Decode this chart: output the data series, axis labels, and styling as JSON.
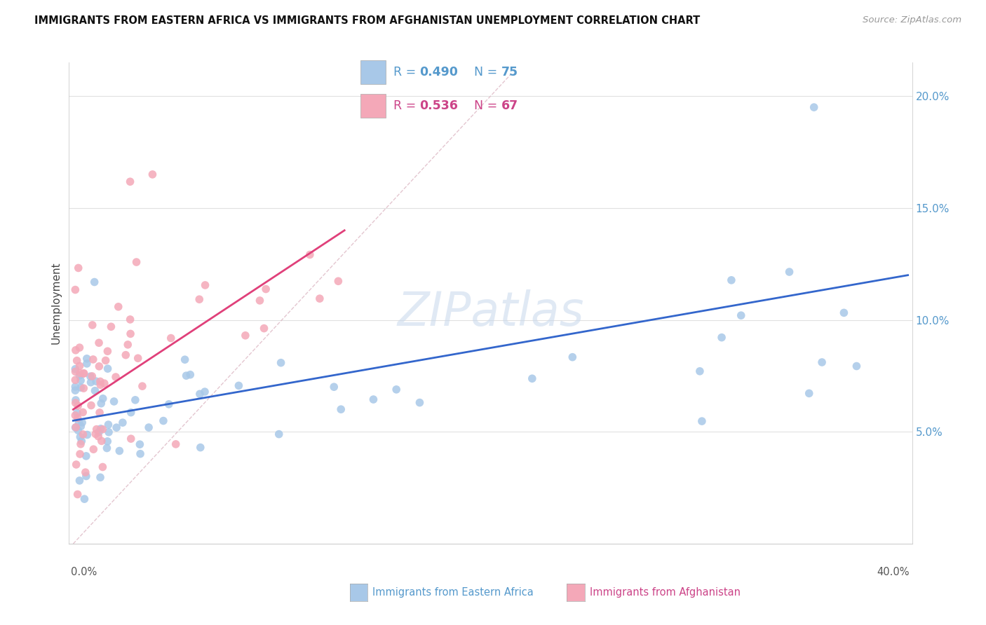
{
  "title": "IMMIGRANTS FROM EASTERN AFRICA VS IMMIGRANTS FROM AFGHANISTAN UNEMPLOYMENT CORRELATION CHART",
  "source": "Source: ZipAtlas.com",
  "ylabel": "Unemployment",
  "ytick_labels": [
    "5.0%",
    "10.0%",
    "15.0%",
    "20.0%"
  ],
  "ytick_values": [
    0.05,
    0.1,
    0.15,
    0.2
  ],
  "xlim": [
    0.0,
    0.4
  ],
  "ylim": [
    0.0,
    0.215
  ],
  "watermark": "ZIPatlas",
  "color_ea": "#a8c8e8",
  "color_af": "#f4a8b8",
  "color_line_ea": "#3366cc",
  "color_line_af": "#e0407a",
  "color_diagonal": "#e8c0cc",
  "legend_r1": "0.490",
  "legend_n1": "75",
  "legend_r2": "0.536",
  "legend_n2": "67"
}
